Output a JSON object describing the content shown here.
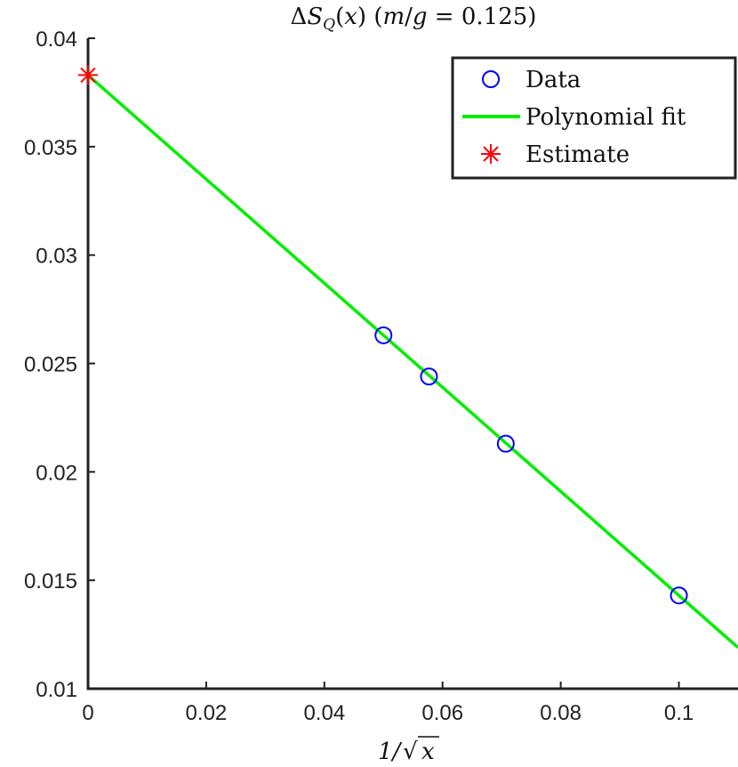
{
  "chart_data": {
    "type": "scatter",
    "title": "ΔS_Q(x) (m/g = 0.125)",
    "xlabel": "1/√x",
    "ylabel": "",
    "xlim": [
      0,
      0.11
    ],
    "ylim": [
      0.01,
      0.04
    ],
    "x_ticks": [
      "0",
      "0.02",
      "0.04",
      "0.06",
      "0.08",
      "0.1"
    ],
    "x_tick_values": [
      0,
      0.02,
      0.04,
      0.06,
      0.08,
      0.1
    ],
    "y_ticks": [
      "0.01",
      "0.015",
      "0.02",
      "0.025",
      "0.03",
      "0.035",
      "0.04"
    ],
    "y_tick_values": [
      0.01,
      0.015,
      0.02,
      0.025,
      0.03,
      0.035,
      0.04
    ],
    "grid": false,
    "legend_position": "top-right",
    "series": [
      {
        "name": "Data",
        "kind": "markers",
        "marker": "circle",
        "color": "#0000ff",
        "x": [
          0.05,
          0.0577,
          0.0707,
          0.1
        ],
        "y": [
          0.0263,
          0.0244,
          0.0213,
          0.0143
        ]
      },
      {
        "name": "Polynomial fit",
        "kind": "line",
        "color": "#00ee00",
        "x": [
          0,
          0.11
        ],
        "y": [
          0.0383,
          0.0119
        ]
      },
      {
        "name": "Estimate",
        "kind": "markers",
        "marker": "asterisk",
        "color": "#ff0000",
        "x": [
          0
        ],
        "y": [
          0.0383
        ]
      }
    ]
  }
}
